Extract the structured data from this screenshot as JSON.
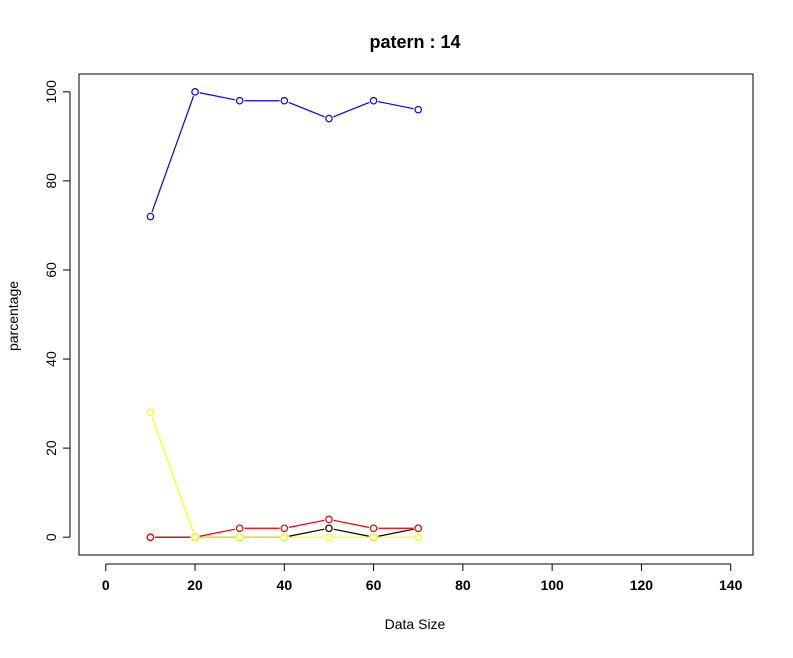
{
  "chart_data": {
    "type": "line",
    "title": "patern :  14",
    "xlabel": "Data Size",
    "ylabel": "parcentage",
    "xlim": [
      -6,
      145
    ],
    "ylim": [
      -4,
      104
    ],
    "x_ticks": [
      0,
      20,
      40,
      60,
      80,
      100,
      120,
      140
    ],
    "y_ticks": [
      0,
      20,
      40,
      60,
      80,
      100
    ],
    "grid": false,
    "legend": "none",
    "x": [
      10,
      20,
      30,
      40,
      50,
      60,
      70
    ],
    "marker": "open-circle",
    "series": [
      {
        "color": "#0000ff",
        "values": [
          72,
          100,
          98,
          98,
          94,
          98,
          96
        ]
      },
      {
        "color": "#000000",
        "values": [
          0,
          0,
          0,
          0,
          2,
          0,
          2
        ]
      },
      {
        "color": "#dd0000",
        "values": [
          0,
          0,
          2,
          2,
          4,
          2,
          2
        ]
      },
      {
        "color": "#ffff00",
        "values": [
          28,
          0,
          0,
          0,
          0,
          0,
          0
        ]
      }
    ]
  }
}
